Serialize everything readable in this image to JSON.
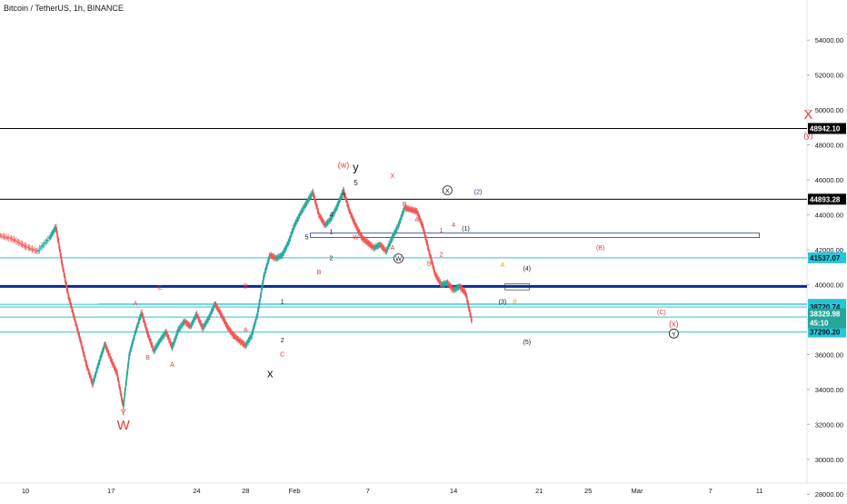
{
  "header": {
    "title": "Bitcoin / TetherUS, 1h, BINANCE"
  },
  "chart_data": {
    "type": "candlestick",
    "symbol": "Bitcoin / TetherUS",
    "interval": "1h",
    "exchange": "BINANCE",
    "ylim": [
      27500,
      55500
    ],
    "y_ticks": [
      28000,
      30000,
      32000,
      34000,
      36000,
      38000,
      40000,
      42000,
      44000,
      46000,
      48000,
      50000,
      52000,
      54000
    ],
    "y_tick_labels": [
      "28000.00",
      "30000.00",
      "32000.00",
      "34000.00",
      "36000.00",
      "38000.00",
      "40000.00",
      "42000.00",
      "44000.00",
      "46000.00",
      "48000.00",
      "50000.00",
      "52000.00",
      "54000.00"
    ],
    "x_ticks": [
      "10",
      "17",
      "24",
      "28",
      "Feb",
      "7",
      "14",
      "21",
      "25",
      "Mar",
      "7",
      "11"
    ],
    "x_ticks_day": [
      10,
      17,
      24,
      28,
      32,
      38,
      45,
      52,
      56,
      60,
      66,
      70
    ],
    "price_path": [
      [
        0,
        41300
      ],
      [
        1,
        42100
      ],
      [
        2,
        43000
      ],
      [
        3,
        43800
      ],
      [
        4,
        44300
      ],
      [
        5,
        43600
      ],
      [
        6,
        43500
      ],
      [
        7,
        43100
      ],
      [
        8,
        42800
      ],
      [
        9,
        42600
      ],
      [
        10,
        42200
      ],
      [
        11,
        41900
      ],
      [
        12,
        42700
      ],
      [
        12.5,
        43300
      ],
      [
        13,
        41200
      ],
      [
        13.5,
        39400
      ],
      [
        14,
        38100
      ],
      [
        14.5,
        36800
      ],
      [
        15,
        35400
      ],
      [
        15.5,
        34300
      ],
      [
        16,
        35500
      ],
      [
        16.5,
        36600
      ],
      [
        17,
        35700
      ],
      [
        17.5,
        34900
      ],
      [
        18,
        33000
      ],
      [
        18.5,
        36000
      ],
      [
        19,
        37300
      ],
      [
        19.5,
        38400
      ],
      [
        20,
        37200
      ],
      [
        20.5,
        36200
      ],
      [
        21,
        36800
      ],
      [
        21.5,
        37300
      ],
      [
        22,
        36400
      ],
      [
        22.5,
        37400
      ],
      [
        23,
        37900
      ],
      [
        23.5,
        37600
      ],
      [
        24,
        38300
      ],
      [
        24.5,
        37500
      ],
      [
        25,
        38100
      ],
      [
        25.5,
        38900
      ],
      [
        26,
        38300
      ],
      [
        26.5,
        37600
      ],
      [
        27,
        37100
      ],
      [
        27.5,
        36800
      ],
      [
        28,
        36500
      ],
      [
        28.5,
        37100
      ],
      [
        29,
        38400
      ],
      [
        29.5,
        40500
      ],
      [
        30,
        41700
      ],
      [
        30.5,
        41500
      ],
      [
        31,
        41700
      ],
      [
        31.5,
        42400
      ],
      [
        32,
        43400
      ],
      [
        32.5,
        44100
      ],
      [
        33,
        44700
      ],
      [
        33.5,
        45300
      ],
      [
        34,
        44000
      ],
      [
        34.5,
        43400
      ],
      [
        35,
        43800
      ],
      [
        35.5,
        44500
      ],
      [
        36,
        45400
      ],
      [
        36.5,
        44200
      ],
      [
        37,
        43400
      ],
      [
        37.5,
        42700
      ],
      [
        38,
        42400
      ],
      [
        38.5,
        42100
      ],
      [
        39,
        42300
      ],
      [
        39.5,
        41900
      ],
      [
        40,
        42700
      ],
      [
        40.5,
        43400
      ],
      [
        41,
        44400
      ],
      [
        41.5,
        44300
      ],
      [
        42,
        44200
      ],
      [
        42.5,
        43300
      ],
      [
        43,
        41900
      ],
      [
        43.5,
        40600
      ],
      [
        44,
        40000
      ],
      [
        44.5,
        40100
      ],
      [
        45,
        39700
      ],
      [
        45.5,
        39900
      ],
      [
        46,
        39500
      ],
      [
        46.5,
        37900
      ]
    ],
    "horizontal_levels": [
      {
        "price": 48942.1,
        "label": "48942.10",
        "color": "#000000",
        "width": 1
      },
      {
        "price": 44893.28,
        "label": "44893.28",
        "color": "#000000",
        "width": 1
      },
      {
        "price": 41537.07,
        "label": "41537.07",
        "color": "#26c6da",
        "width": 1
      },
      {
        "price": 39900,
        "label": "",
        "color": "#0d2c8c",
        "width": 3
      },
      {
        "price": 38872.42,
        "label": "38872.42",
        "color": "#26c6da",
        "width": 1
      },
      {
        "price": 38720.74,
        "label": "38720.74",
        "color": "#26c6da",
        "width": 1
      },
      {
        "price": 38142.75,
        "label": "38142.75",
        "color": "#26c6da",
        "width": 1
      },
      {
        "price": 37290.2,
        "label": "37290.20",
        "color": "#26c6da",
        "width": 1
      }
    ],
    "current_price": {
      "price": 38329.98,
      "label": "38329.98",
      "countdown": "45:10",
      "color": "#26a69a"
    },
    "wave_labels": [
      {
        "text": "X",
        "day": 74,
        "price": 49500,
        "color": "#e53935",
        "size": 15
      },
      {
        "text": "(y)",
        "day": 74,
        "price": 48400,
        "color": "#e53935",
        "size": 9
      },
      {
        "text": "(w)",
        "day": 36,
        "price": 46700,
        "color": "#e53935",
        "size": 9
      },
      {
        "text": "y",
        "day": 37,
        "price": 46500,
        "color": "#131722",
        "size": 13
      },
      {
        "text": "5",
        "day": 37,
        "price": 45700,
        "color": "#131722",
        "size": 8
      },
      {
        "text": "W",
        "day": 18,
        "price": 31700,
        "color": "#e53935",
        "size": 15
      },
      {
        "text": "Y",
        "day": 18,
        "price": 32500,
        "color": "#e53935",
        "size": 10
      },
      {
        "text": "x",
        "day": 30,
        "price": 34700,
        "color": "#131722",
        "size": 13
      },
      {
        "text": "(B)",
        "day": 57,
        "price": 42000,
        "color": "#e53935",
        "size": 7
      },
      {
        "text": "(C)",
        "day": 62,
        "price": 38300,
        "color": "#e53935",
        "size": 7
      },
      {
        "text": "(x)",
        "day": 63,
        "price": 37600,
        "color": "#e53935",
        "size": 9
      },
      {
        "text": "(2)",
        "day": 47,
        "price": 45200,
        "color": "#1e3a8a",
        "size": 7
      },
      {
        "text": "(1)",
        "day": 46,
        "price": 43100,
        "color": "#131722",
        "size": 7
      },
      {
        "text": "(3)",
        "day": 49,
        "price": 38900,
        "color": "#131722",
        "size": 7
      },
      {
        "text": "(4)",
        "day": 51,
        "price": 40800,
        "color": "#131722",
        "size": 7
      },
      {
        "text": "(5)",
        "day": 51,
        "price": 36600,
        "color": "#131722",
        "size": 7
      },
      {
        "text": "A",
        "day": 19,
        "price": 38800,
        "color": "#e53935",
        "size": 7
      },
      {
        "text": "B",
        "day": 20,
        "price": 35700,
        "color": "#e53935",
        "size": 7
      },
      {
        "text": "A",
        "day": 22,
        "price": 35300,
        "color": "#e53935",
        "size": 7
      },
      {
        "text": "C",
        "day": 21,
        "price": 39700,
        "color": "#e53935",
        "size": 7
      },
      {
        "text": "B",
        "day": 28,
        "price": 39800,
        "color": "#e53935",
        "size": 7
      },
      {
        "text": "A",
        "day": 28,
        "price": 37300,
        "color": "#e53935",
        "size": 7
      },
      {
        "text": "C",
        "day": 31,
        "price": 35900,
        "color": "#e53935",
        "size": 7
      },
      {
        "text": "1",
        "day": 31,
        "price": 38900,
        "color": "#131722",
        "size": 7
      },
      {
        "text": "2",
        "day": 31,
        "price": 36700,
        "color": "#131722",
        "size": 7
      },
      {
        "text": "3",
        "day": 36,
        "price": 45000,
        "color": "#131722",
        "size": 7
      },
      {
        "text": "4",
        "day": 35,
        "price": 43900,
        "color": "#131722",
        "size": 7
      },
      {
        "text": "2",
        "day": 35,
        "price": 41400,
        "color": "#131722",
        "size": 7
      },
      {
        "text": "1",
        "day": 35,
        "price": 42900,
        "color": "#131722",
        "size": 7
      },
      {
        "text": "B",
        "day": 34,
        "price": 40600,
        "color": "#e53935",
        "size": 7
      },
      {
        "text": "5",
        "day": 33,
        "price": 42600,
        "color": "#131722",
        "size": 7
      },
      {
        "text": "X",
        "day": 40,
        "price": 46100,
        "color": "#e53935",
        "size": 7
      },
      {
        "text": "B",
        "day": 41,
        "price": 44500,
        "color": "#e53935",
        "size": 7
      },
      {
        "text": "A",
        "day": 42,
        "price": 43600,
        "color": "#e53935",
        "size": 7
      },
      {
        "text": "W",
        "day": 37,
        "price": 42600,
        "color": "#e53935",
        "size": 7
      },
      {
        "text": "A",
        "day": 40,
        "price": 42000,
        "color": "#e53935",
        "size": 7
      },
      {
        "text": "B",
        "day": 43,
        "price": 41100,
        "color": "#e53935",
        "size": 7
      },
      {
        "text": "2",
        "day": 44,
        "price": 41600,
        "color": "#e53935",
        "size": 7
      },
      {
        "text": "1",
        "day": 44,
        "price": 43000,
        "color": "#e53935",
        "size": 7
      },
      {
        "text": "4",
        "day": 45,
        "price": 43300,
        "color": "#e53935",
        "size": 7
      },
      {
        "text": "B",
        "day": 50,
        "price": 38900,
        "color": "#ff9800",
        "size": 7
      },
      {
        "text": "A",
        "day": 49,
        "price": 41000,
        "color": "#ff9800",
        "size": 7
      }
    ],
    "circle_labels": [
      {
        "text": "W",
        "day": 40.5,
        "price": 41500,
        "color": "#131722"
      },
      {
        "text": "X",
        "day": 44.5,
        "price": 45400,
        "color": "#131722"
      },
      {
        "text": "Y",
        "day": 63,
        "price": 37200,
        "color": "#131722"
      }
    ]
  }
}
